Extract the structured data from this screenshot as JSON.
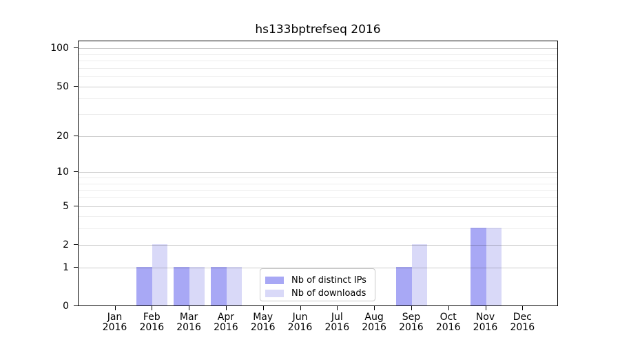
{
  "chart_data": {
    "type": "bar",
    "title": "hs133bptrefseq 2016",
    "categories": [
      "Jan",
      "Feb",
      "Mar",
      "Apr",
      "May",
      "Jun",
      "Jul",
      "Aug",
      "Sep",
      "Oct",
      "Nov",
      "Dec"
    ],
    "category_year": "2016",
    "series": [
      {
        "name": "Nb of distinct IPs",
        "color": "#a8a8f5",
        "values": [
          0,
          1,
          1,
          1,
          0,
          0,
          0,
          0,
          1,
          0,
          3,
          0
        ]
      },
      {
        "name": "Nb of downloads",
        "color": "#d9d9f8",
        "values": [
          0,
          2,
          1,
          1,
          0,
          0,
          0,
          0,
          2,
          0,
          3,
          0
        ]
      }
    ],
    "yscale": "log1p",
    "y_axis": {
      "major_ticks": [
        0,
        1,
        2,
        5,
        10,
        20,
        50,
        100
      ],
      "minor_ticks": [
        3,
        4,
        6,
        7,
        8,
        9,
        30,
        40,
        60,
        70,
        80,
        90
      ],
      "top_labeled_tick": 100
    },
    "xlabel": "",
    "ylabel": "",
    "grid": "both",
    "legend_position": "lower center"
  },
  "colors": {
    "background": "#ffffff",
    "spine": "#000000",
    "bar_distinct_ips": "#a8a8f5",
    "bar_downloads": "#d9d9f8"
  }
}
